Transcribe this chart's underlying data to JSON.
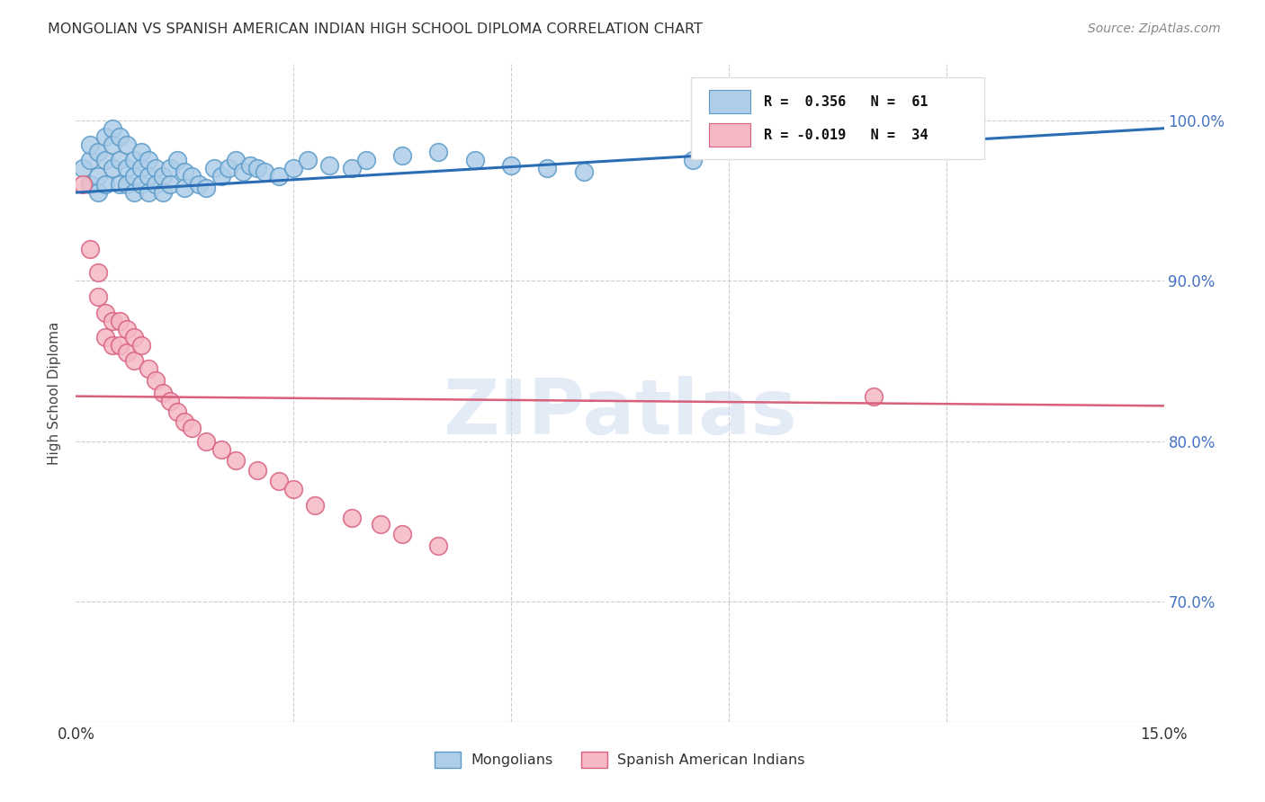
{
  "title": "MONGOLIAN VS SPANISH AMERICAN INDIAN HIGH SCHOOL DIPLOMA CORRELATION CHART",
  "source": "Source: ZipAtlas.com",
  "ylabel": "High School Diploma",
  "ytick_labels": [
    "100.0%",
    "90.0%",
    "80.0%",
    "70.0%"
  ],
  "ytick_values": [
    1.0,
    0.9,
    0.8,
    0.7
  ],
  "xlim": [
    0.0,
    0.15
  ],
  "ylim": [
    0.625,
    1.035
  ],
  "mongolian_color": "#aecde8",
  "mongolian_edge_color": "#5b9bc8",
  "spanish_color": "#f5b8c4",
  "spanish_edge_color": "#d96080",
  "trendline_mongolian_color": "#2a6db5",
  "trendline_spanish_color": "#d9607a",
  "legend_R_mongolian": "R =  0.356",
  "legend_N_mongolian": "N =  61",
  "legend_R_spanish": "R = -0.019",
  "legend_N_spanish": "N =  34",
  "watermark": "ZIPatlas",
  "mongolian_x": [
    0.001,
    0.002,
    0.002,
    0.002,
    0.003,
    0.003,
    0.003,
    0.004,
    0.004,
    0.004,
    0.005,
    0.005,
    0.005,
    0.006,
    0.006,
    0.006,
    0.007,
    0.007,
    0.007,
    0.008,
    0.008,
    0.008,
    0.009,
    0.009,
    0.009,
    0.01,
    0.01,
    0.01,
    0.011,
    0.011,
    0.012,
    0.012,
    0.013,
    0.013,
    0.014,
    0.015,
    0.015,
    0.016,
    0.017,
    0.018,
    0.019,
    0.02,
    0.021,
    0.022,
    0.023,
    0.024,
    0.025,
    0.026,
    0.028,
    0.03,
    0.032,
    0.035,
    0.038,
    0.04,
    0.045,
    0.05,
    0.055,
    0.06,
    0.065,
    0.07,
    0.085
  ],
  "mongolian_y": [
    0.97,
    0.975,
    0.985,
    0.96,
    0.98,
    0.965,
    0.955,
    0.99,
    0.975,
    0.96,
    0.995,
    0.985,
    0.97,
    0.99,
    0.975,
    0.96,
    0.985,
    0.97,
    0.96,
    0.975,
    0.965,
    0.955,
    0.98,
    0.97,
    0.96,
    0.975,
    0.965,
    0.955,
    0.97,
    0.96,
    0.965,
    0.955,
    0.97,
    0.96,
    0.975,
    0.968,
    0.958,
    0.965,
    0.96,
    0.958,
    0.97,
    0.965,
    0.97,
    0.975,
    0.968,
    0.972,
    0.97,
    0.968,
    0.965,
    0.97,
    0.975,
    0.972,
    0.97,
    0.975,
    0.978,
    0.98,
    0.975,
    0.972,
    0.97,
    0.968,
    0.975
  ],
  "spanish_x": [
    0.001,
    0.002,
    0.003,
    0.003,
    0.004,
    0.004,
    0.005,
    0.005,
    0.006,
    0.006,
    0.007,
    0.007,
    0.008,
    0.008,
    0.009,
    0.01,
    0.011,
    0.012,
    0.013,
    0.014,
    0.015,
    0.016,
    0.018,
    0.02,
    0.022,
    0.025,
    0.028,
    0.03,
    0.033,
    0.038,
    0.042,
    0.045,
    0.05,
    0.11
  ],
  "spanish_y": [
    0.96,
    0.92,
    0.905,
    0.89,
    0.88,
    0.865,
    0.875,
    0.86,
    0.875,
    0.86,
    0.87,
    0.855,
    0.865,
    0.85,
    0.86,
    0.845,
    0.838,
    0.83,
    0.825,
    0.818,
    0.812,
    0.808,
    0.8,
    0.795,
    0.788,
    0.782,
    0.775,
    0.77,
    0.76,
    0.752,
    0.748,
    0.742,
    0.735,
    0.828
  ],
  "trendline_mong_x0": 0.0,
  "trendline_mong_y0": 0.955,
  "trendline_mong_x1": 0.15,
  "trendline_mong_y1": 0.995,
  "trendline_span_x0": 0.0,
  "trendline_span_y0": 0.828,
  "trendline_span_x1": 0.15,
  "trendline_span_y1": 0.822
}
